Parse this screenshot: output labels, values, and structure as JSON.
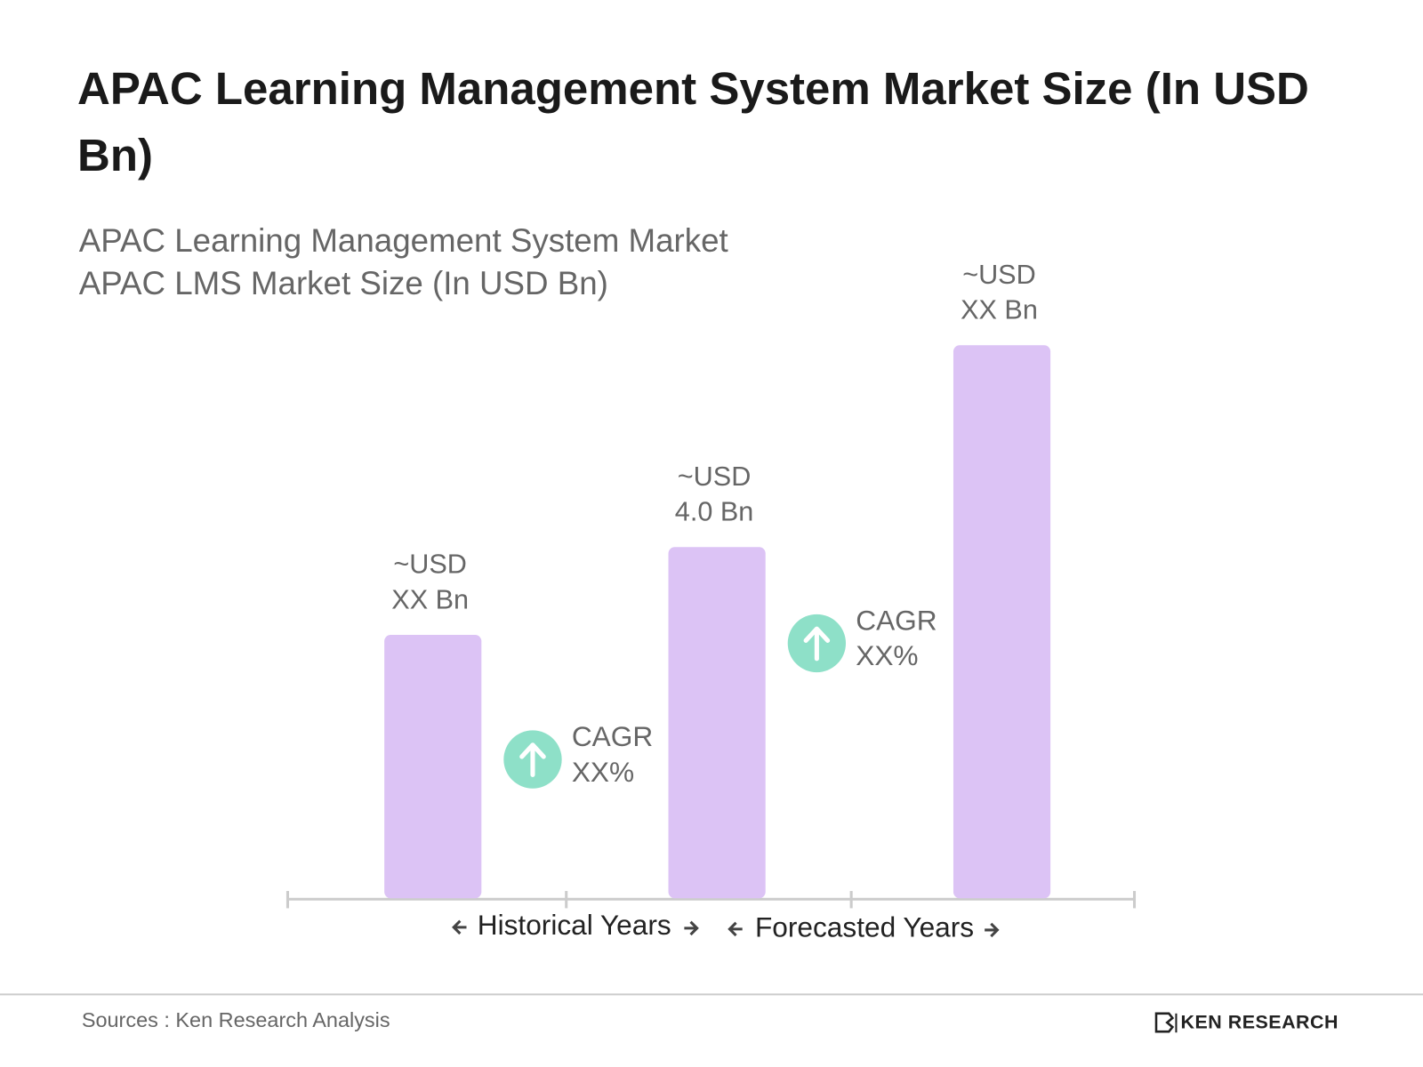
{
  "chart_data": {
    "type": "bar",
    "title": "APAC Learning Management System Market Size (In USD Bn)",
    "subtitle": [
      "APAC Learning Management System Market",
      "APAC LMS Market Size (In USD Bn)"
    ],
    "values": [
      3.0,
      4.0,
      6.3
    ],
    "value_labels": [
      [
        "~USD",
        "XX Bn"
      ],
      [
        "~USD",
        "4.0 Bn"
      ],
      [
        "~USD",
        "XX Bn"
      ]
    ],
    "color": "#dcc3f5",
    "annotations": [
      {
        "text": [
          "CAGR",
          "XX%"
        ],
        "color": "#8ee0c8"
      },
      {
        "text": [
          "CAGR",
          "XX%"
        ],
        "color": "#8ee0c8"
      }
    ],
    "period_labels": [
      "Historical Years",
      "Forecasted Years"
    ],
    "source": "Sources : Ken Research Analysis",
    "brand": "KEN RESEARCH"
  }
}
